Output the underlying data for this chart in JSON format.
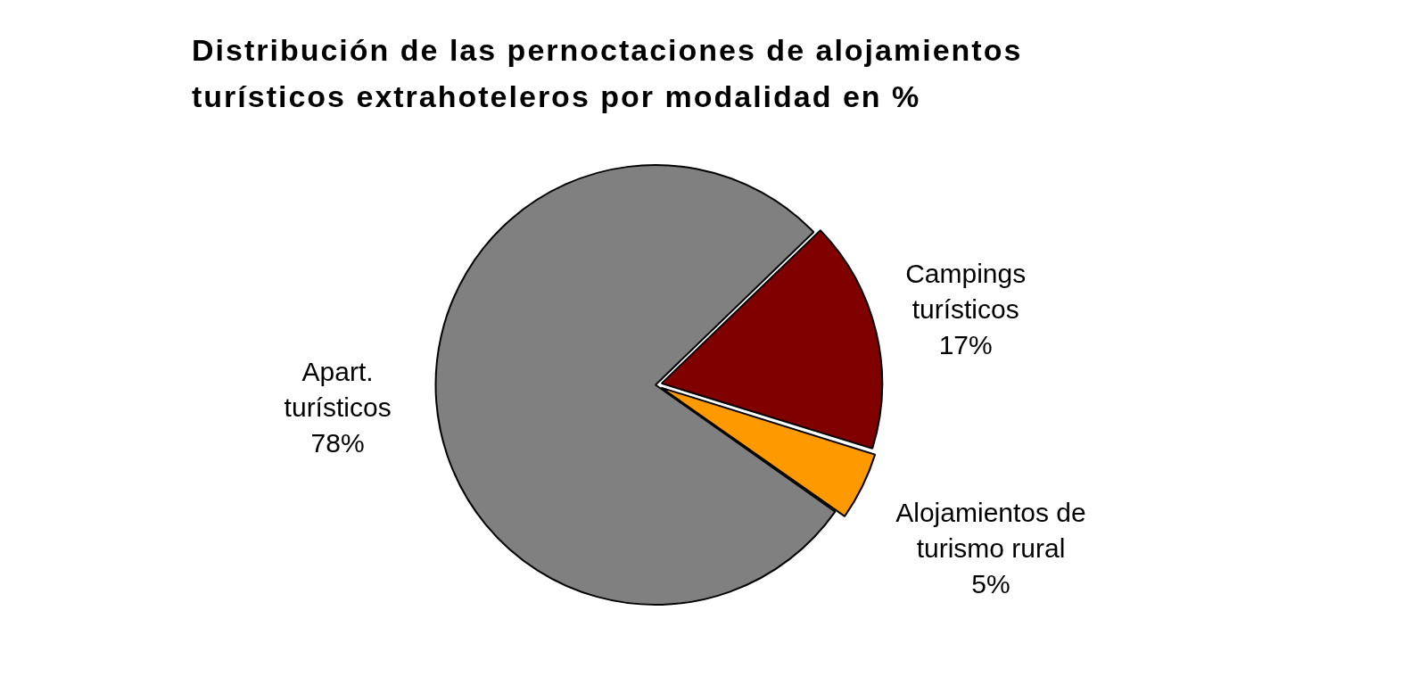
{
  "chart_data": {
    "type": "pie",
    "title": "Distribución de las pernoctaciones de alojamientos turísticos extrahoteleros por modalidad en  %",
    "categories": [
      "Campings turísticos",
      "Alojamientos de turismo rural",
      "Apart. turísticos"
    ],
    "values": [
      17,
      5,
      78
    ],
    "colors": [
      "#800000",
      "#ff9900",
      "#808080"
    ],
    "value_labels": [
      "17%",
      "5%",
      "78%"
    ],
    "legend": false
  }
}
